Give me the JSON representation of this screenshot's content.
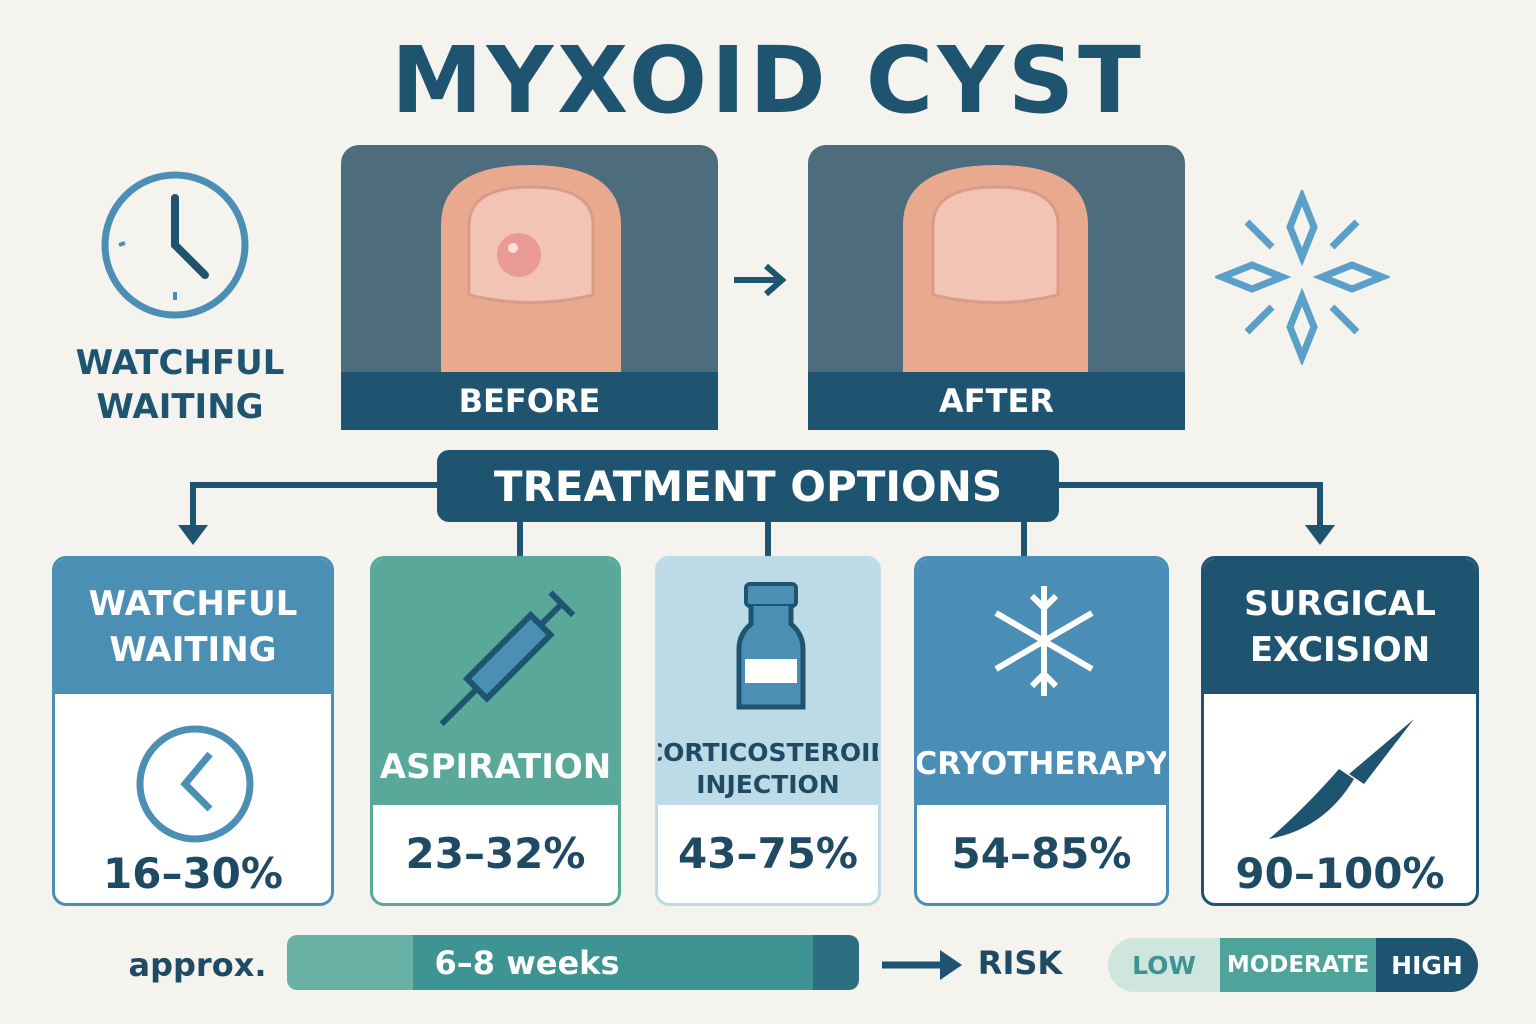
{
  "title": "MYXOID CYST",
  "side_label": "WATCHFUL WAITING",
  "photos": {
    "before": "BEFORE",
    "after": "AFTER"
  },
  "treatment_header": "TREATMENT OPTIONS",
  "options": [
    {
      "name": "WATCHFUL WAITING",
      "rate": "16–30%"
    },
    {
      "name": "ASPIRATION",
      "rate": "23–32%"
    },
    {
      "name": "CORTICOSTEROID INJECTION",
      "rate": "43–75%"
    },
    {
      "name": "CRYOTHERAPY",
      "rate": "54–85%"
    },
    {
      "name": "SURGICAL EXCISION",
      "rate": "90–100%"
    }
  ],
  "footer": {
    "approx": "approx.",
    "duration": "6–8 weeks",
    "risk": "RISK",
    "risk_levels": [
      "LOW",
      "MODERATE",
      "HIGH"
    ]
  }
}
